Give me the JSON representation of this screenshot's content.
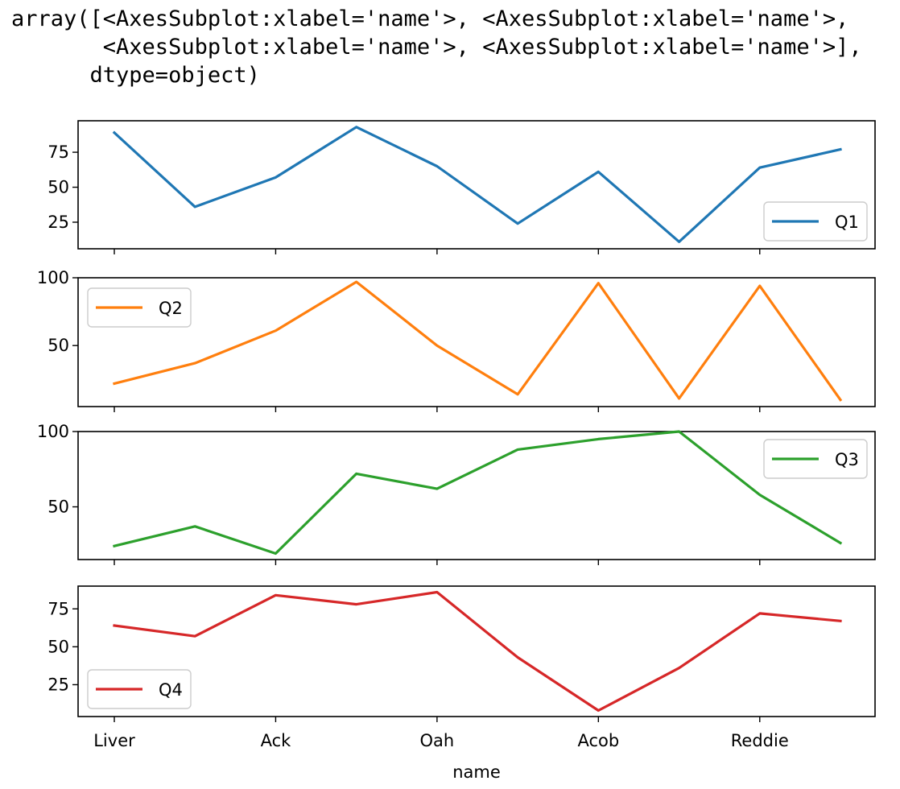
{
  "output_text": {
    "line1": "array([<AxesSubplot:xlabel='name'>, <AxesSubplot:xlabel='name'>,",
    "line2": "       <AxesSubplot:xlabel='name'>, <AxesSubplot:xlabel='name'>],",
    "line3": "      dtype=object)"
  },
  "chart_data": {
    "type": "line",
    "xlabel": "name",
    "x_tick_labels": [
      "Liver",
      "Ack",
      "Oah",
      "Acob",
      "Reddie"
    ],
    "x_tick_indices": [
      0,
      2,
      4,
      6,
      8
    ],
    "n_points": 10,
    "shared_x": true,
    "grid": false,
    "subplots": [
      {
        "name": "Q1",
        "color": "#1f77b4",
        "values": [
          89,
          36,
          57,
          93,
          65,
          24,
          61,
          11,
          64,
          77
        ],
        "ylim": [
          6,
          97.5
        ],
        "yticks": [
          25,
          50,
          75
        ],
        "legend": "bottom-right"
      },
      {
        "name": "Q2",
        "color": "#ff7f0e",
        "values": [
          22,
          37,
          61,
          97,
          50,
          14,
          96,
          11,
          94,
          10
        ],
        "ylim": [
          5,
          100
        ],
        "yticks": [
          50,
          100
        ],
        "legend": "top-left"
      },
      {
        "name": "Q3",
        "color": "#2ca02c",
        "values": [
          24,
          37,
          19,
          72,
          62,
          88,
          95,
          100,
          58,
          26
        ],
        "ylim": [
          15,
          100
        ],
        "yticks": [
          50,
          100
        ],
        "legend": "top-right"
      },
      {
        "name": "Q4",
        "color": "#d62728",
        "values": [
          64,
          57,
          84,
          78,
          86,
          43,
          8,
          36,
          72,
          67
        ],
        "ylim": [
          4,
          90
        ],
        "yticks": [
          25,
          50,
          75
        ],
        "legend": "bottom-left"
      }
    ]
  }
}
